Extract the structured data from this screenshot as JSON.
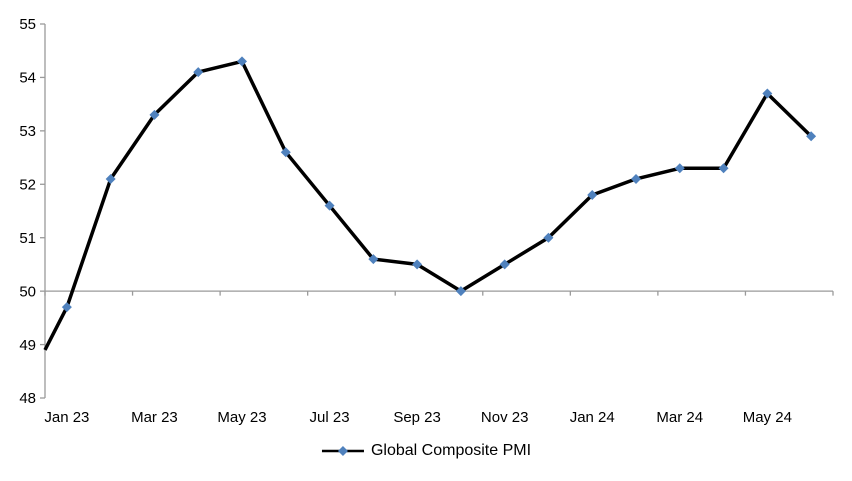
{
  "chart_data": {
    "type": "line",
    "title": "",
    "categories": [
      "Jan 23",
      "Feb 23",
      "Mar 23",
      "Apr 23",
      "May 23",
      "Jun 23",
      "Jul 23",
      "Aug 23",
      "Sep 23",
      "Oct 23",
      "Nov 23",
      "Dec 23",
      "Jan 24",
      "Feb 24",
      "Mar 24",
      "Apr 24",
      "May 24",
      "Jun 24"
    ],
    "series": [
      {
        "name": "Global Composite PMI",
        "values": [
          49.7,
          52.1,
          53.3,
          54.1,
          54.3,
          52.6,
          51.6,
          50.6,
          50.5,
          50.0,
          50.5,
          51.0,
          51.8,
          52.1,
          52.3,
          52.3,
          53.7,
          52.9
        ]
      }
    ],
    "lead_in_value_at_left_edge": 48.9,
    "x_tick_labels": [
      "Jan 23",
      "Mar 23",
      "May 23",
      "Jul 23",
      "Sep 23",
      "Nov 23",
      "Jan 24",
      "Mar 24",
      "May 24"
    ],
    "x_label_every_n_categories": 2,
    "y_ticks": [
      48,
      49,
      50,
      51,
      52,
      53,
      54,
      55
    ],
    "ylim": [
      48,
      55
    ],
    "category_axis_crosses_at": 50,
    "category_tick_every_n": 2,
    "grid": "single horizontal line at 50 only",
    "legend_position": "bottom-center",
    "marker_shape": "diamond",
    "colors": {
      "line": "#000000",
      "marker": "#4F81BD",
      "axis": "#9A9A9A",
      "text": "#000000",
      "background": "#FFFFFF"
    }
  }
}
